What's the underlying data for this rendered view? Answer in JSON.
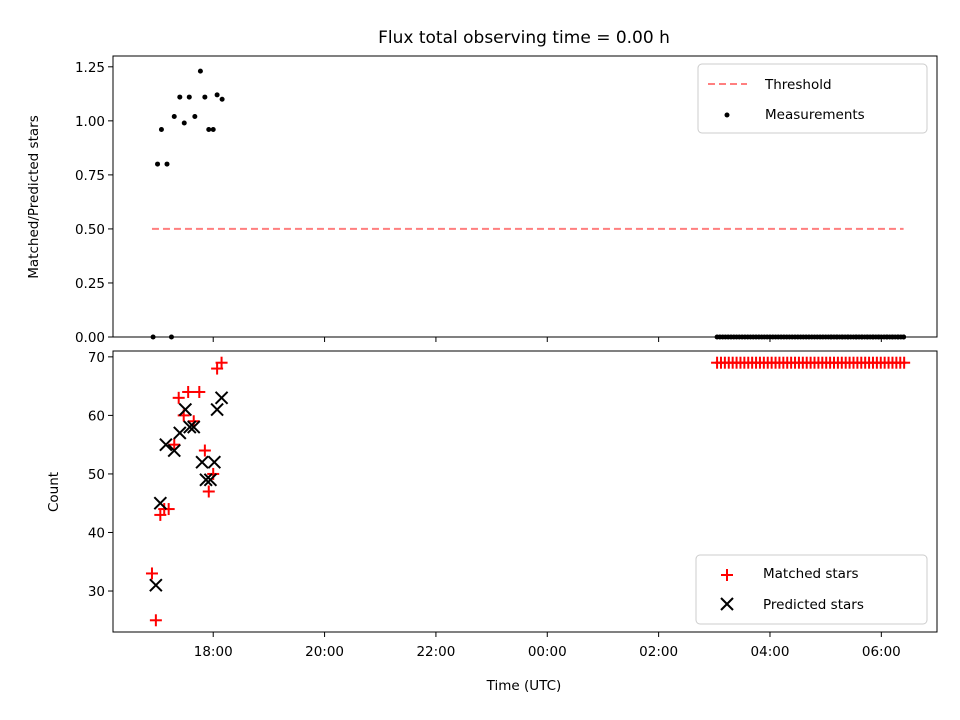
{
  "chart_data": {
    "type": "scatter",
    "title": "Flux total observing time = 0.00 h",
    "xlabel": "Time (UTC)",
    "x_unit": "hours since 00:00 of the first day",
    "x_range": [
      16.2,
      31.0
    ],
    "x_ticks": [
      {
        "value": 18,
        "label": "18:00"
      },
      {
        "value": 20,
        "label": "20:00"
      },
      {
        "value": 22,
        "label": "22:00"
      },
      {
        "value": 24,
        "label": "00:00"
      },
      {
        "value": 26,
        "label": "02:00"
      },
      {
        "value": 28,
        "label": "04:00"
      },
      {
        "value": 30,
        "label": "06:00"
      }
    ],
    "panels": [
      {
        "id": "ratio",
        "ylabel": "Matched/Predicted stars",
        "ylim": [
          0.0,
          1.3
        ],
        "y_ticks": [
          "0.00",
          "0.25",
          "0.50",
          "0.75",
          "1.00",
          "1.25"
        ],
        "legend_position": "top-right",
        "series": [
          {
            "name": "Threshold",
            "kind": "line",
            "style": "dashed",
            "color": "#ff7f7f",
            "x": [
              16.9,
              30.4
            ],
            "y": [
              0.5,
              0.5
            ]
          },
          {
            "name": "Measurements",
            "kind": "scatter",
            "marker": "dot",
            "color": "#000000",
            "points": [
              [
                16.92,
                0.0
              ],
              [
                17.0,
                0.8
              ],
              [
                17.07,
                0.96
              ],
              [
                17.17,
                0.8
              ],
              [
                17.25,
                0.0
              ],
              [
                17.3,
                1.02
              ],
              [
                17.4,
                1.11
              ],
              [
                17.48,
                0.99
              ],
              [
                17.57,
                1.11
              ],
              [
                17.67,
                1.02
              ],
              [
                17.77,
                1.23
              ],
              [
                17.85,
                1.11
              ],
              [
                17.92,
                0.96
              ],
              [
                18.0,
                0.96
              ],
              [
                18.07,
                1.12
              ],
              [
                18.16,
                1.1
              ],
              [
                29.1,
                0.0
              ],
              [
                29.2,
                0.0
              ],
              [
                29.3,
                0.0
              ],
              [
                29.4,
                0.0
              ],
              [
                29.55,
                0.0
              ],
              [
                29.65,
                0.0
              ],
              [
                29.75,
                0.0
              ],
              [
                29.85,
                0.0
              ],
              [
                29.95,
                0.0
              ],
              [
                30.1,
                0.0
              ],
              [
                30.2,
                0.0
              ],
              [
                30.3,
                0.0
              ],
              [
                30.4,
                0.0
              ]
            ],
            "zero_band_x": [
              27.05,
              30.45
            ]
          }
        ]
      },
      {
        "id": "count",
        "ylabel": "Count",
        "ylim": [
          23,
          71
        ],
        "y_ticks": [
          "30",
          "40",
          "50",
          "60",
          "70"
        ],
        "legend_position": "bottom-right",
        "series": [
          {
            "name": "Matched stars",
            "kind": "scatter",
            "marker": "plus",
            "color": "#ff0000",
            "points": [
              [
                16.9,
                33
              ],
              [
                16.97,
                25
              ],
              [
                17.05,
                43
              ],
              [
                17.12,
                44
              ],
              [
                17.2,
                44
              ],
              [
                17.3,
                55
              ],
              [
                17.38,
                63
              ],
              [
                17.47,
                60
              ],
              [
                17.55,
                64
              ],
              [
                17.65,
                59
              ],
              [
                17.75,
                64
              ],
              [
                17.85,
                54
              ],
              [
                17.92,
                47
              ],
              [
                18.0,
                50
              ],
              [
                18.07,
                68
              ],
              [
                18.15,
                69
              ]
            ],
            "constant_band": {
              "y": 69,
              "x": [
                27.05,
                30.45
              ]
            }
          },
          {
            "name": "Predicted stars",
            "kind": "scatter",
            "marker": "x",
            "color": "#000000",
            "points": [
              [
                16.97,
                31
              ],
              [
                17.05,
                45
              ],
              [
                17.15,
                55
              ],
              [
                17.3,
                54
              ],
              [
                17.4,
                57
              ],
              [
                17.5,
                61
              ],
              [
                17.58,
                58
              ],
              [
                17.65,
                58
              ],
              [
                17.8,
                52
              ],
              [
                17.87,
                49
              ],
              [
                17.95,
                49
              ],
              [
                18.02,
                52
              ],
              [
                18.07,
                61
              ],
              [
                18.15,
                63
              ]
            ]
          }
        ]
      }
    ]
  }
}
